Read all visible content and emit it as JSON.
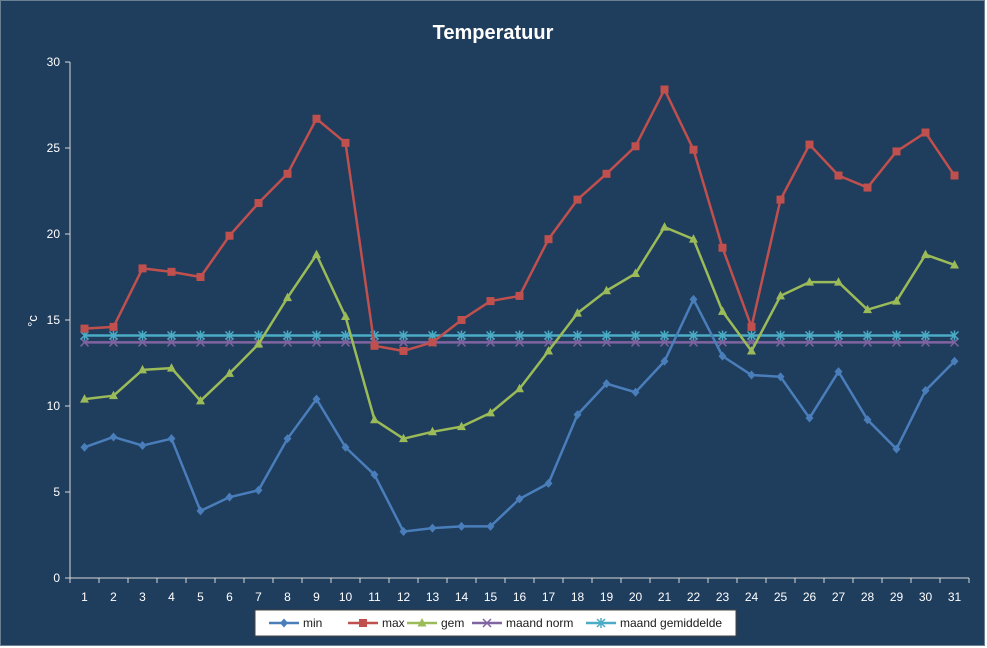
{
  "chart_data": {
    "type": "line",
    "title": "Temperatuur",
    "xlabel": "",
    "ylabel": "°c",
    "ylim": [
      0,
      30
    ],
    "yticks": [
      0,
      5,
      10,
      15,
      20,
      25,
      30
    ],
    "grid": false,
    "legend_position": "bottom",
    "x": [
      1,
      2,
      3,
      4,
      5,
      6,
      7,
      8,
      9,
      10,
      11,
      12,
      13,
      14,
      15,
      16,
      17,
      18,
      19,
      20,
      21,
      22,
      23,
      24,
      25,
      26,
      27,
      28,
      29,
      30,
      31
    ],
    "series": [
      {
        "name": "min",
        "color": "#4a7ebb",
        "marker": "diamond",
        "values": [
          7.6,
          8.2,
          7.7,
          8.1,
          3.9,
          4.7,
          5.1,
          8.1,
          10.4,
          7.6,
          6.0,
          2.7,
          2.9,
          3.0,
          3.0,
          4.6,
          5.5,
          9.5,
          11.3,
          10.8,
          12.6,
          16.2,
          12.9,
          11.8,
          11.7,
          9.3,
          12.0,
          9.2,
          7.5,
          10.9,
          12.6
        ]
      },
      {
        "name": "max",
        "color": "#c0504d",
        "marker": "square",
        "values": [
          14.5,
          14.6,
          18.0,
          17.8,
          17.5,
          19.9,
          21.8,
          23.5,
          26.7,
          25.3,
          13.5,
          13.2,
          13.7,
          15.0,
          16.1,
          16.4,
          19.7,
          22.0,
          23.5,
          25.1,
          28.4,
          24.9,
          19.2,
          14.6,
          22.0,
          25.2,
          23.4,
          22.7,
          24.8,
          25.9,
          23.4
        ]
      },
      {
        "name": "gem",
        "color": "#9bbb59",
        "marker": "triangle",
        "values": [
          10.4,
          10.6,
          12.1,
          12.2,
          10.3,
          11.9,
          13.6,
          16.3,
          18.8,
          15.2,
          9.2,
          8.1,
          8.5,
          8.8,
          9.6,
          11.0,
          13.2,
          15.4,
          16.7,
          17.7,
          20.4,
          19.7,
          15.5,
          13.2,
          16.4,
          17.2,
          17.2,
          15.6,
          16.1,
          18.8,
          18.2
        ]
      },
      {
        "name": "maand norm",
        "color": "#8064a2",
        "marker": "x",
        "values": [
          13.7,
          13.7,
          13.7,
          13.7,
          13.7,
          13.7,
          13.7,
          13.7,
          13.7,
          13.7,
          13.7,
          13.7,
          13.7,
          13.7,
          13.7,
          13.7,
          13.7,
          13.7,
          13.7,
          13.7,
          13.7,
          13.7,
          13.7,
          13.7,
          13.7,
          13.7,
          13.7,
          13.7,
          13.7,
          13.7,
          13.7
        ]
      },
      {
        "name": "maand gemiddelde",
        "color": "#4bacc6",
        "marker": "star",
        "values": [
          14.1,
          14.1,
          14.1,
          14.1,
          14.1,
          14.1,
          14.1,
          14.1,
          14.1,
          14.1,
          14.1,
          14.1,
          14.1,
          14.1,
          14.1,
          14.1,
          14.1,
          14.1,
          14.1,
          14.1,
          14.1,
          14.1,
          14.1,
          14.1,
          14.1,
          14.1,
          14.1,
          14.1,
          14.1,
          14.1,
          14.1
        ]
      }
    ]
  },
  "colors": {
    "background": "#1f3d5d",
    "axis": "#d9d9d9",
    "legend_background": "#ffffff"
  }
}
